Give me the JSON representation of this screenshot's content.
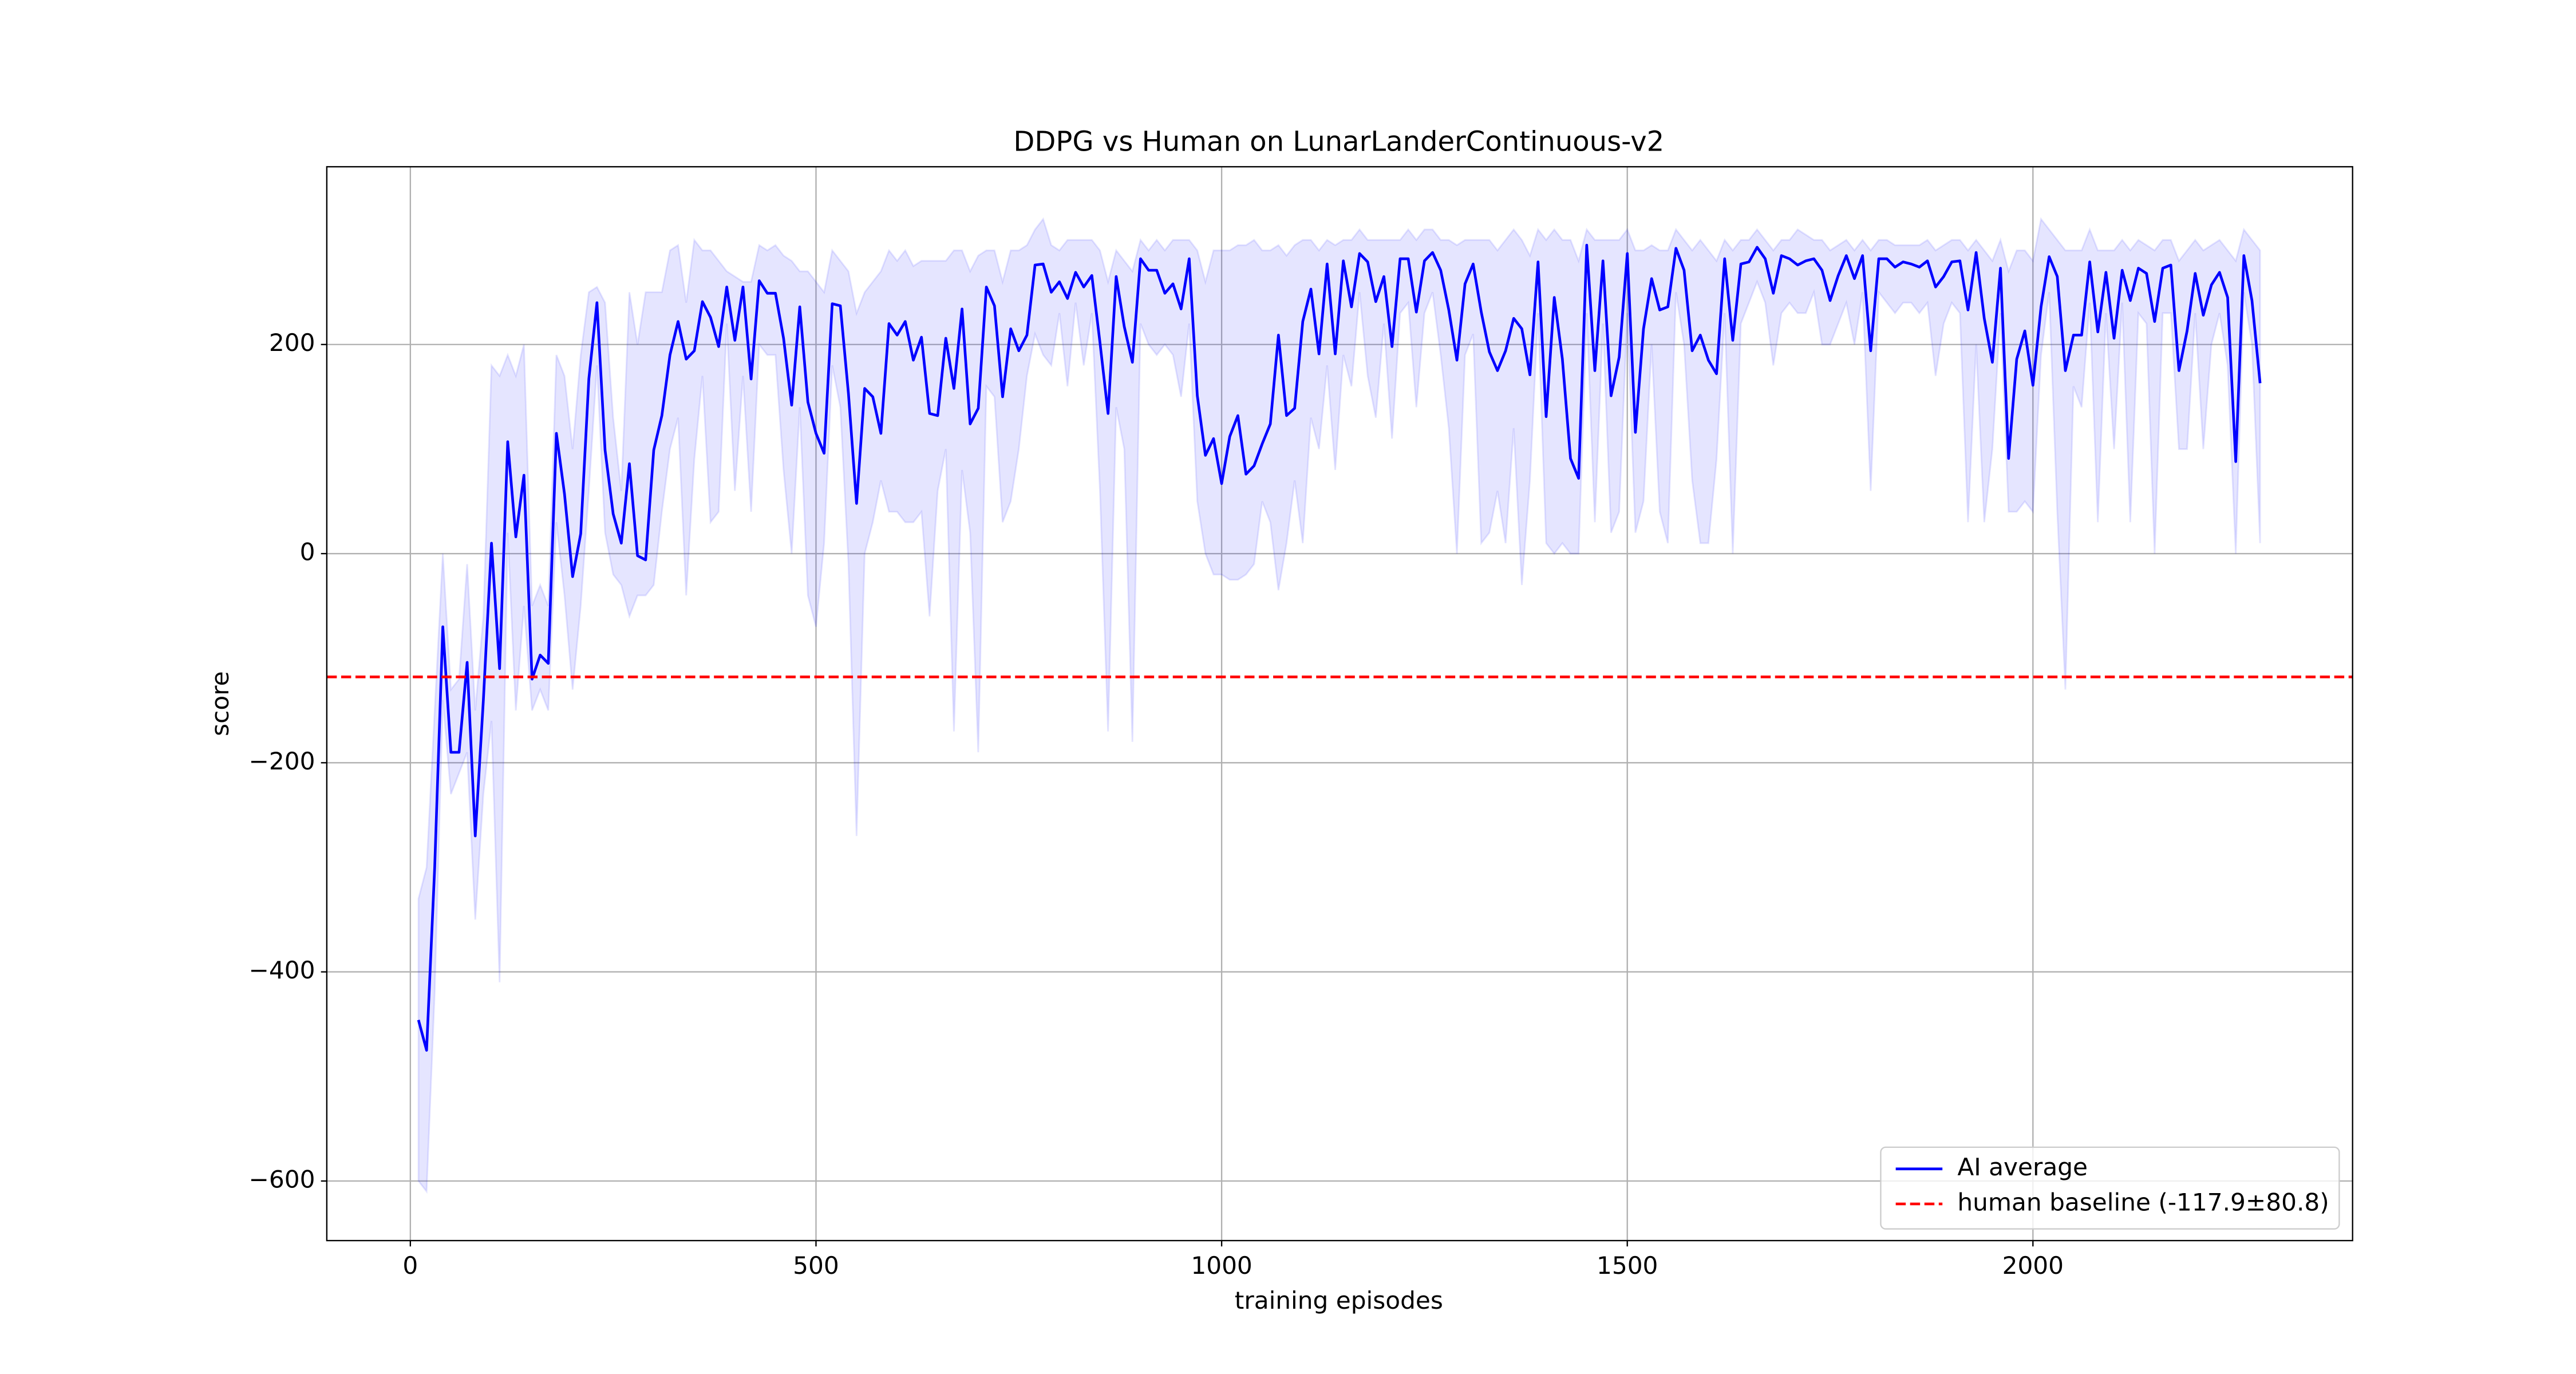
{
  "chart_data": {
    "type": "line",
    "title": "DDPG vs Human on LunarLanderContinuous-v2",
    "x_label": "training episodes",
    "y_label": "score",
    "xlim": [
      -103,
      2394
    ],
    "ylim": [
      -657,
      370
    ],
    "xticks": [
      0,
      500,
      1000,
      1500,
      2000
    ],
    "yticks": [
      {
        "value": -600,
        "label": "−600"
      },
      {
        "value": -400,
        "label": "−400"
      },
      {
        "value": -200,
        "label": "−200"
      },
      0,
      200
    ],
    "grid": true,
    "legend": "lower right",
    "x": [
      10,
      20,
      30,
      40,
      50,
      60,
      70,
      80,
      90,
      100,
      110,
      120,
      130,
      140,
      150,
      160,
      170,
      180,
      190,
      200,
      210,
      220,
      230,
      240,
      250,
      260,
      270,
      280,
      290,
      300,
      310,
      320,
      330,
      340,
      350,
      360,
      370,
      380,
      390,
      400,
      410,
      420,
      430,
      440,
      450,
      460,
      470,
      480,
      490,
      500,
      510,
      520,
      530,
      540,
      550,
      560,
      570,
      580,
      590,
      600,
      610,
      620,
      630,
      640,
      650,
      660,
      670,
      680,
      690,
      700,
      710,
      720,
      730,
      740,
      750,
      760,
      770,
      780,
      790,
      800,
      810,
      820,
      830,
      840,
      850,
      860,
      870,
      880,
      890,
      900,
      910,
      920,
      930,
      940,
      950,
      960,
      970,
      980,
      990,
      1000,
      1010,
      1020,
      1030,
      1040,
      1050,
      1060,
      1070,
      1080,
      1090,
      1100,
      1110,
      1120,
      1130,
      1140,
      1150,
      1160,
      1170,
      1180,
      1190,
      1200,
      1210,
      1220,
      1230,
      1240,
      1250,
      1260,
      1270,
      1280,
      1290,
      1300,
      1310,
      1320,
      1330,
      1340,
      1350,
      1360,
      1370,
      1380,
      1390,
      1400,
      1410,
      1420,
      1430,
      1440,
      1450,
      1460,
      1470,
      1480,
      1490,
      1500,
      1510,
      1520,
      1530,
      1540,
      1550,
      1560,
      1570,
      1580,
      1590,
      1600,
      1610,
      1620,
      1630,
      1640,
      1650,
      1660,
      1670,
      1680,
      1690,
      1700,
      1710,
      1720,
      1730,
      1740,
      1750,
      1760,
      1770,
      1780,
      1790,
      1800,
      1810,
      1820,
      1830,
      1840,
      1850,
      1860,
      1870,
      1880,
      1890,
      1900,
      1910,
      1920,
      1930,
      1940,
      1950,
      1960,
      1970,
      1980,
      1990,
      2000,
      2010,
      2020,
      2030,
      2040,
      2050,
      2060,
      2070,
      2080,
      2090,
      2100,
      2110,
      2120,
      2130,
      2140,
      2150,
      2160,
      2170,
      2180,
      2190,
      2200,
      2210,
      2220,
      2230,
      2240,
      2250,
      2260,
      2270,
      2280
    ],
    "series": [
      {
        "name": "AI average",
        "color": "#0000ff",
        "band_color": "#0000ff",
        "values": [
          -446,
          -475,
          -300,
          -70,
          -190,
          -190,
          -104,
          -270,
          -140,
          10,
          -110,
          107,
          16,
          75,
          -120,
          -97,
          -105,
          115,
          57,
          -22,
          19,
          167,
          240,
          99,
          38,
          10,
          86,
          -2,
          -6,
          99,
          132,
          190,
          222,
          186,
          194,
          241,
          226,
          198,
          255,
          204,
          255,
          167,
          261,
          249,
          249,
          206,
          142,
          236,
          145,
          115,
          96,
          239,
          237,
          153,
          48,
          158,
          150,
          115,
          220,
          209,
          222,
          185,
          207,
          134,
          132,
          206,
          158,
          234,
          124,
          139,
          255,
          237,
          150,
          215,
          194,
          209,
          276,
          277,
          250,
          260,
          244,
          269,
          255,
          266,
          202,
          134,
          265,
          217,
          183,
          282,
          271,
          271,
          249,
          258,
          234,
          282,
          151,
          94,
          110,
          67,
          112,
          132,
          76,
          84,
          105,
          124,
          209,
          132,
          139,
          222,
          253,
          191,
          277,
          191,
          280,
          236,
          287,
          279,
          241,
          265,
          198,
          282,
          282,
          231,
          280,
          288,
          271,
          233,
          185,
          258,
          277,
          231,
          193,
          175,
          194,
          225,
          215,
          171,
          279,
          131,
          245,
          186,
          91,
          72,
          295,
          175,
          280,
          151,
          188,
          287,
          116,
          215,
          263,
          233,
          236,
          292,
          271,
          194,
          209,
          185,
          172,
          282,
          204,
          277,
          279,
          293,
          282,
          249,
          285,
          282,
          276,
          280,
          282,
          271,
          242,
          266,
          285,
          263,
          285,
          194,
          282,
          282,
          274,
          279,
          277,
          274,
          280,
          255,
          265,
          279,
          280,
          233,
          288,
          225,
          183,
          273,
          91,
          186,
          213,
          161,
          236,
          284,
          265,
          175,
          209,
          209,
          279,
          212,
          269,
          206,
          271,
          242,
          273,
          268,
          222,
          273,
          276,
          175,
          213,
          268,
          228,
          257,
          269,
          245,
          88,
          285,
          242,
          163
        ],
        "lower": [
          -600,
          -610,
          -420,
          -140,
          -230,
          -210,
          -190,
          -350,
          -230,
          -160,
          -410,
          20,
          -150,
          -50,
          -150,
          -130,
          -150,
          30,
          -40,
          -130,
          -50,
          60,
          180,
          20,
          -20,
          -30,
          -60,
          -40,
          -40,
          -30,
          40,
          100,
          130,
          -40,
          90,
          170,
          30,
          40,
          220,
          60,
          170,
          40,
          200,
          190,
          190,
          80,
          0,
          140,
          -40,
          -70,
          10,
          180,
          140,
          -10,
          -270,
          0,
          30,
          70,
          40,
          40,
          30,
          30,
          40,
          -60,
          60,
          100,
          -170,
          80,
          20,
          -190,
          160,
          150,
          30,
          50,
          100,
          170,
          210,
          190,
          180,
          230,
          160,
          240,
          180,
          230,
          60,
          -170,
          140,
          100,
          -180,
          220,
          200,
          190,
          200,
          190,
          150,
          220,
          50,
          0,
          -20,
          -20,
          -25,
          -25,
          -20,
          -10,
          50,
          30,
          -35,
          10,
          70,
          10,
          130,
          100,
          180,
          80,
          190,
          160,
          250,
          170,
          130,
          220,
          110,
          230,
          240,
          140,
          230,
          250,
          190,
          120,
          0,
          190,
          210,
          10,
          20,
          60,
          10,
          120,
          -30,
          70,
          230,
          10,
          0,
          10,
          0,
          0,
          230,
          30,
          220,
          20,
          40,
          230,
          20,
          50,
          200,
          40,
          10,
          250,
          200,
          70,
          10,
          10,
          90,
          230,
          0,
          220,
          240,
          260,
          240,
          180,
          230,
          240,
          230,
          230,
          250,
          200,
          200,
          220,
          240,
          200,
          250,
          60,
          250,
          240,
          230,
          240,
          240,
          230,
          240,
          170,
          220,
          240,
          230,
          30,
          200,
          30,
          100,
          230,
          40,
          40,
          50,
          40,
          190,
          250,
          40,
          -130,
          160,
          140,
          240,
          30,
          230,
          100,
          240,
          30,
          230,
          220,
          0,
          230,
          230,
          100,
          100,
          230,
          100,
          200,
          230,
          180,
          0,
          250,
          200,
          10
        ],
        "upper": [
          -330,
          -300,
          -150,
          0,
          -130,
          -120,
          -10,
          -150,
          -60,
          180,
          170,
          190,
          170,
          200,
          -50,
          -30,
          -50,
          190,
          170,
          100,
          190,
          250,
          255,
          240,
          130,
          60,
          250,
          200,
          250,
          250,
          250,
          290,
          295,
          240,
          300,
          290,
          290,
          280,
          270,
          265,
          260,
          260,
          295,
          290,
          295,
          285,
          280,
          270,
          270,
          260,
          250,
          290,
          280,
          270,
          230,
          250,
          260,
          270,
          290,
          280,
          290,
          275,
          280,
          280,
          280,
          280,
          290,
          290,
          270,
          285,
          290,
          290,
          260,
          290,
          290,
          295,
          310,
          320,
          295,
          290,
          300,
          300,
          300,
          300,
          290,
          260,
          290,
          280,
          270,
          300,
          290,
          300,
          290,
          300,
          300,
          300,
          290,
          260,
          290,
          290,
          290,
          295,
          295,
          300,
          290,
          290,
          295,
          285,
          295,
          300,
          300,
          290,
          300,
          295,
          300,
          300,
          310,
          300,
          300,
          300,
          300,
          300,
          310,
          300,
          310,
          310,
          300,
          300,
          295,
          300,
          300,
          300,
          300,
          290,
          300,
          310,
          300,
          285,
          310,
          300,
          310,
          300,
          300,
          280,
          310,
          300,
          300,
          300,
          300,
          310,
          290,
          290,
          295,
          290,
          290,
          310,
          300,
          290,
          300,
          290,
          280,
          300,
          290,
          300,
          300,
          310,
          300,
          290,
          300,
          300,
          310,
          305,
          300,
          300,
          290,
          295,
          300,
          290,
          300,
          290,
          300,
          300,
          295,
          295,
          295,
          295,
          300,
          290,
          295,
          300,
          300,
          290,
          300,
          290,
          280,
          300,
          270,
          290,
          290,
          280,
          320,
          310,
          300,
          290,
          290,
          290,
          310,
          290,
          290,
          290,
          300,
          290,
          300,
          295,
          290,
          300,
          300,
          280,
          290,
          300,
          290,
          295,
          300,
          290,
          280,
          310,
          300,
          290
        ]
      }
    ],
    "reference_lines": [
      {
        "name": "human baseline (-117.9±80.8)",
        "value": -117.9,
        "color": "#ff0000",
        "style": "dashed"
      }
    ]
  }
}
